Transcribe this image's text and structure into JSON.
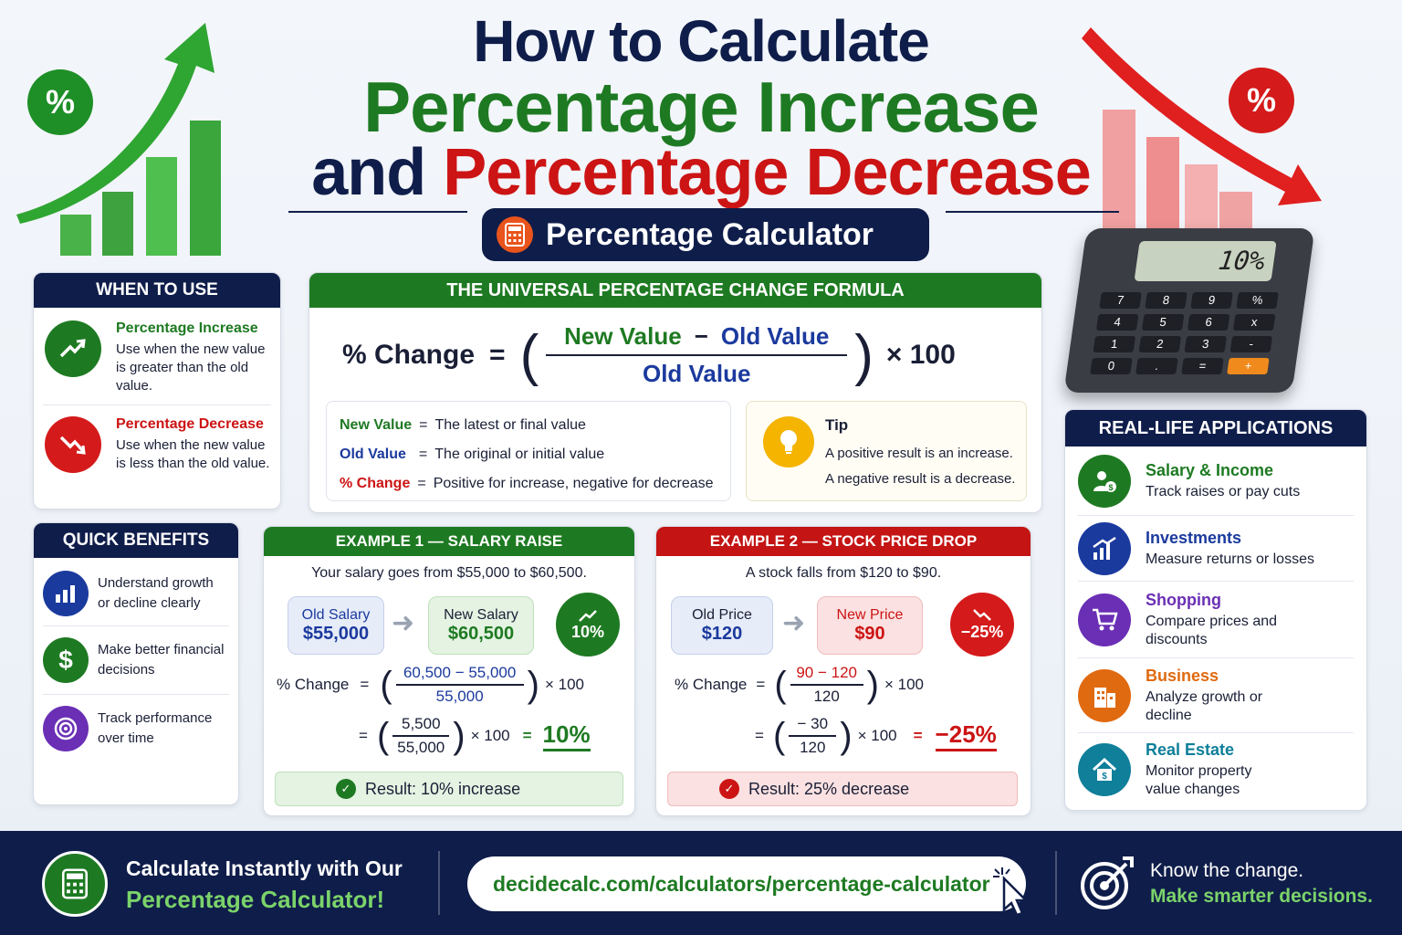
{
  "header": {
    "line1": "How to Calculate",
    "line2": "Percentage Increase",
    "line3_and": "and",
    "line3_dec": "Percentage Decrease",
    "pill_label": "Percentage Calculator"
  },
  "deco": {
    "left_badge": "%",
    "right_badge": "%",
    "calculator_display": "10%",
    "calc_keys": [
      "7",
      "8",
      "9",
      "%",
      "4",
      "5",
      "6",
      "x",
      "1",
      "2",
      "3",
      "-",
      "0",
      ".",
      "=",
      "+"
    ]
  },
  "when_to_use": {
    "title": "WHEN TO USE",
    "items": [
      {
        "title": "Percentage Increase",
        "desc": "Use when the new value is greater than the old value."
      },
      {
        "title": "Percentage Decrease",
        "desc": "Use when the new value is less than the old value."
      }
    ]
  },
  "formula": {
    "title": "THE UNIVERSAL PERCENTAGE CHANGE FORMULA",
    "lhs": "% Change",
    "eq": "=",
    "new_value": "New Value",
    "minus": "−",
    "old_value": "Old Value",
    "denominator": "Old Value",
    "times": "× 100",
    "legend": [
      {
        "term": "New Value",
        "eq": "=",
        "desc": "The latest or final value",
        "color": "#1e7a22"
      },
      {
        "term": "Old Value",
        "eq": "=",
        "desc": "The original or initial value",
        "color": "#1b3a9e"
      },
      {
        "term": "% Change",
        "eq": "=",
        "desc": "Positive for increase, negative for decrease",
        "color": "#cc1414"
      }
    ],
    "tip_title": "Tip",
    "tip_line1": "A positive result is an increase.",
    "tip_line2": "A negative result is a decrease."
  },
  "quick_benefits": {
    "title": "QUICK BENEFITS",
    "items": [
      {
        "text": "Understand growth or decline clearly",
        "icon": "bar-chart-icon",
        "color": "#1b3a9e"
      },
      {
        "text": "Make better financial decisions",
        "icon": "dollar-icon",
        "color": "#1e7a22"
      },
      {
        "text": "Track performance over time",
        "icon": "target-icon",
        "color": "#6a2fb5"
      }
    ]
  },
  "example1": {
    "title": "EXAMPLE 1 — SALARY RAISE",
    "intro": "Your salary goes from $55,000 to $60,500.",
    "old_label": "Old Salary",
    "old_value": "$55,000",
    "new_label": "New Salary",
    "new_value": "$60,500",
    "badge": "10%",
    "calc_lhs": "% Change",
    "eq": "=",
    "num1": "60,500 − 55,000",
    "den1": "55,000",
    "times": "× 100",
    "num2": "5,500",
    "den2": "55,000",
    "answer": "10%",
    "result": "Result: 10% increase"
  },
  "example2": {
    "title": "EXAMPLE 2 — STOCK PRICE DROP",
    "intro": "A stock falls from $120 to $90.",
    "old_label": "Old Price",
    "old_value": "$120",
    "new_label": "New Price",
    "new_value": "$90",
    "badge": "−25%",
    "calc_lhs": "% Change",
    "eq": "=",
    "num1": "90 − 120",
    "den1": "120",
    "times": "× 100",
    "num2": "− 30",
    "den2": "120",
    "answer": "−25%",
    "result": "Result: 25% decrease"
  },
  "applications": {
    "title": "REAL-LIFE APPLICATIONS",
    "items": [
      {
        "title": "Salary & Income",
        "desc": "Track raises or pay cuts",
        "color": "#1e7a22",
        "icon": "person-money-icon"
      },
      {
        "title": "Investments",
        "desc": "Measure returns or losses",
        "color": "#1b3a9e",
        "icon": "growth-chart-icon"
      },
      {
        "title": "Shopping",
        "desc": "Compare prices and discounts",
        "color": "#6a2fb5",
        "icon": "cart-icon"
      },
      {
        "title": "Business",
        "desc": "Analyze growth or decline",
        "color": "#e06a10",
        "icon": "building-icon"
      },
      {
        "title": "Real Estate",
        "desc": "Monitor property value changes",
        "color": "#0f7f9a",
        "icon": "house-icon"
      }
    ]
  },
  "footer": {
    "cta_line1": "Calculate Instantly with Our",
    "cta_line2": "Percentage Calculator!",
    "url": "decidecalc.com/calculators/percentage-calculator",
    "tag_line1": "Know the change.",
    "tag_line2": "Make smarter decisions."
  }
}
